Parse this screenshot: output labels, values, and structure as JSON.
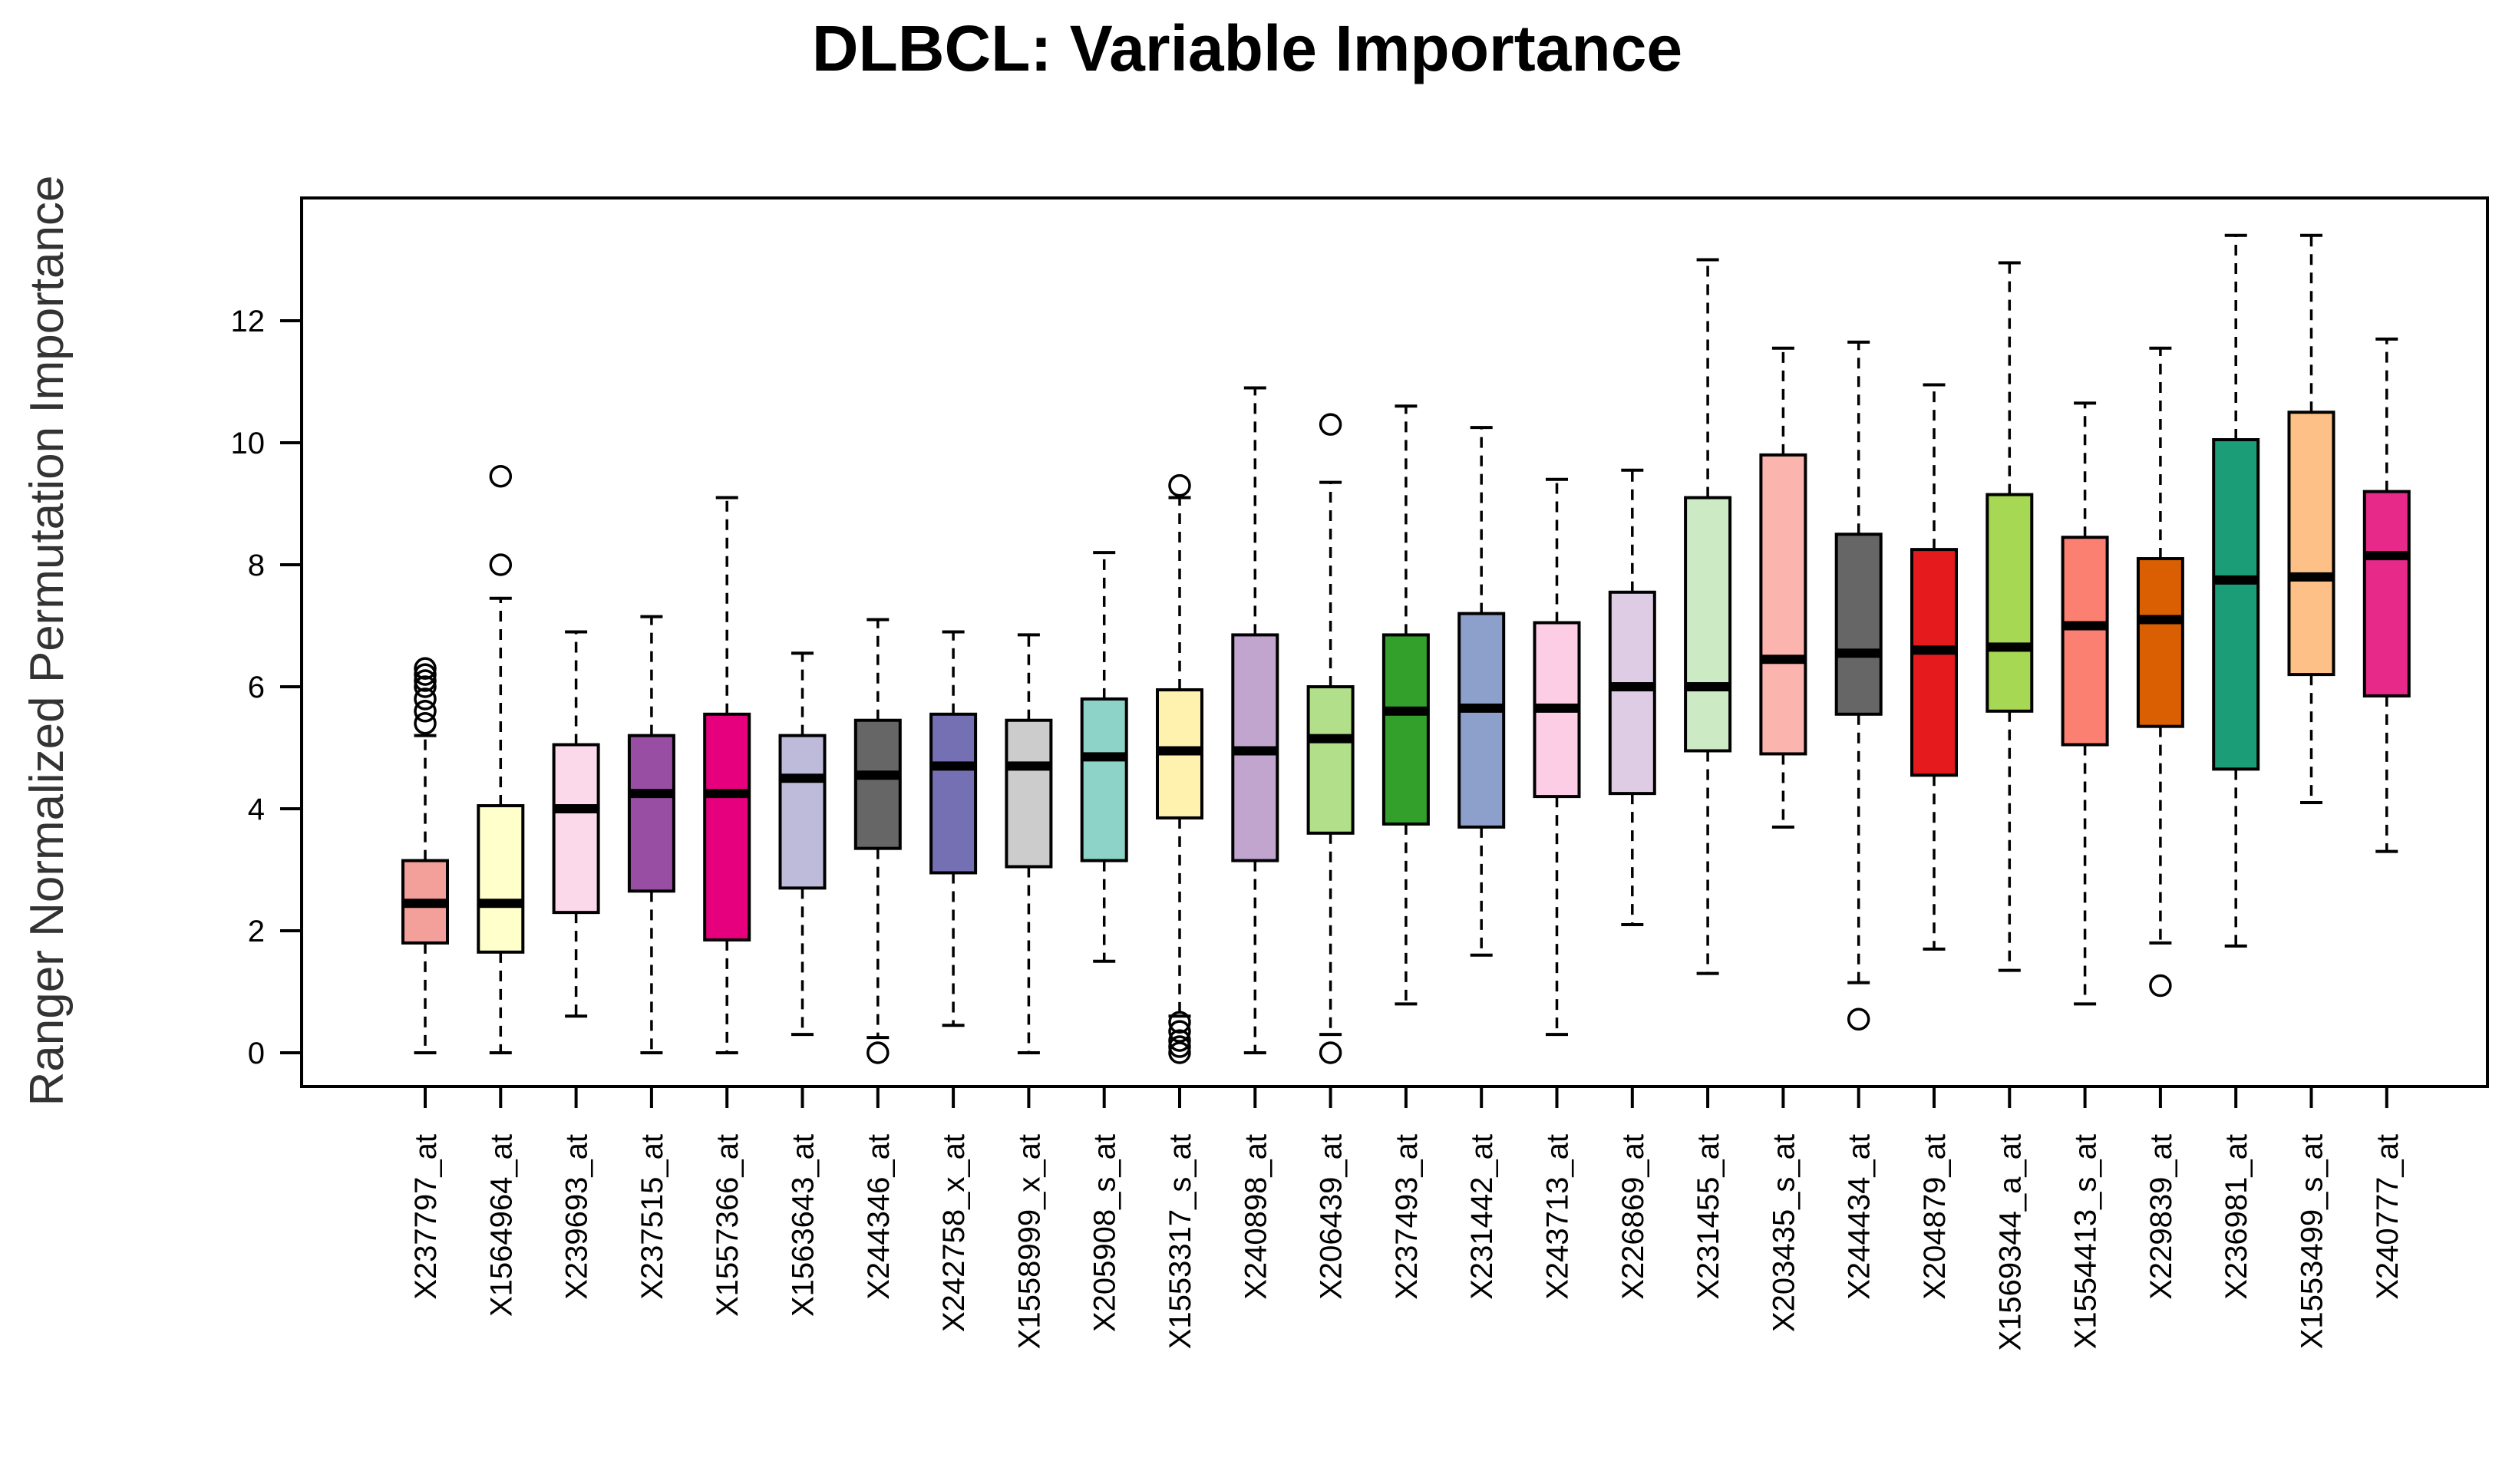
{
  "chart_data": {
    "type": "boxplot",
    "title": "DLBCL: Variable Importance",
    "xlabel": "",
    "ylabel": "Ranger Normalized Permutation Importance",
    "ylim": [
      0,
      14
    ],
    "yticks": [
      0,
      2,
      4,
      6,
      8,
      10,
      12
    ],
    "grid": false,
    "legend": "none",
    "boxes": [
      {
        "label": "X237797_at",
        "color": "#F4A09A",
        "min": 0.0,
        "q1": 1.8,
        "median": 2.45,
        "q3": 3.15,
        "max": 5.2,
        "outliers": [
          5.4,
          5.6,
          5.8,
          6.0,
          6.1,
          6.2,
          6.3
        ]
      },
      {
        "label": "X1564964_at",
        "color": "#FFFFCC",
        "min": 0.0,
        "q1": 1.65,
        "median": 2.45,
        "q3": 4.05,
        "max": 7.45,
        "outliers": [
          8.0,
          9.45
        ]
      },
      {
        "label": "X239693_at",
        "color": "#FBD8EA",
        "min": 0.6,
        "q1": 2.3,
        "median": 4.0,
        "q3": 5.05,
        "max": 6.9,
        "outliers": []
      },
      {
        "label": "X237515_at",
        "color": "#984EA3",
        "min": 0.0,
        "q1": 2.65,
        "median": 4.25,
        "q3": 5.2,
        "max": 7.15,
        "outliers": []
      },
      {
        "label": "X1557366_at",
        "color": "#E7007D",
        "min": 0.0,
        "q1": 1.85,
        "median": 4.25,
        "q3": 5.55,
        "max": 9.1,
        "outliers": []
      },
      {
        "label": "X1563643_at",
        "color": "#BEBADA",
        "min": 0.3,
        "q1": 2.7,
        "median": 4.5,
        "q3": 5.2,
        "max": 6.55,
        "outliers": []
      },
      {
        "label": "X244346_at",
        "color": "#666666",
        "min": 0.25,
        "q1": 3.35,
        "median": 4.55,
        "q3": 5.45,
        "max": 7.1,
        "outliers": [
          0.0
        ]
      },
      {
        "label": "X242758_x_at",
        "color": "#7570B3",
        "min": 0.45,
        "q1": 2.95,
        "median": 4.7,
        "q3": 5.55,
        "max": 6.9,
        "outliers": []
      },
      {
        "label": "X1558999_x_at",
        "color": "#CCCCCC",
        "min": 0.0,
        "q1": 3.05,
        "median": 4.7,
        "q3": 5.45,
        "max": 6.85,
        "outliers": []
      },
      {
        "label": "X205908_s_at",
        "color": "#8DD3C7",
        "min": 1.5,
        "q1": 3.15,
        "median": 4.85,
        "q3": 5.8,
        "max": 8.2,
        "outliers": []
      },
      {
        "label": "X1553317_s_at",
        "color": "#FFF2AE",
        "min": 0.6,
        "q1": 3.85,
        "median": 4.95,
        "q3": 5.95,
        "max": 9.1,
        "outliers": [
          0.0,
          0.1,
          0.2,
          0.35,
          0.5,
          9.3
        ]
      },
      {
        "label": "X240898_at",
        "color": "#C2A5CF",
        "min": 0.0,
        "q1": 3.15,
        "median": 4.95,
        "q3": 6.85,
        "max": 10.9,
        "outliers": []
      },
      {
        "label": "X206439_at",
        "color": "#B2DF8A",
        "min": 0.3,
        "q1": 3.6,
        "median": 5.15,
        "q3": 6.0,
        "max": 9.35,
        "outliers": [
          0.0,
          10.3
        ]
      },
      {
        "label": "X237493_at",
        "color": "#33A02C",
        "min": 0.8,
        "q1": 3.75,
        "median": 5.6,
        "q3": 6.85,
        "max": 10.6,
        "outliers": []
      },
      {
        "label": "X231442_at",
        "color": "#8DA0CB",
        "min": 1.6,
        "q1": 3.7,
        "median": 5.65,
        "q3": 7.2,
        "max": 10.25,
        "outliers": []
      },
      {
        "label": "X243713_at",
        "color": "#FCCDE5",
        "min": 0.3,
        "q1": 4.2,
        "median": 5.65,
        "q3": 7.05,
        "max": 9.4,
        "outliers": []
      },
      {
        "label": "X226869_at",
        "color": "#DECBE4",
        "min": 2.1,
        "q1": 4.25,
        "median": 6.0,
        "q3": 7.55,
        "max": 9.55,
        "outliers": []
      },
      {
        "label": "X231455_at",
        "color": "#CCEBC5",
        "min": 1.3,
        "q1": 4.95,
        "median": 6.0,
        "q3": 9.1,
        "max": 13.0,
        "outliers": []
      },
      {
        "label": "X203435_s_at",
        "color": "#FBB4AE",
        "min": 3.7,
        "q1": 4.9,
        "median": 6.45,
        "q3": 9.8,
        "max": 11.55,
        "outliers": []
      },
      {
        "label": "X244434_at",
        "color": "#666666",
        "min": 1.15,
        "q1": 5.55,
        "median": 6.55,
        "q3": 8.5,
        "max": 11.65,
        "outliers": [
          0.55
        ]
      },
      {
        "label": "X204879_at",
        "color": "#E41A1C",
        "min": 1.7,
        "q1": 4.55,
        "median": 6.6,
        "q3": 8.25,
        "max": 10.95,
        "outliers": []
      },
      {
        "label": "X1569344_a_at",
        "color": "#A6D854",
        "min": 1.35,
        "q1": 5.6,
        "median": 6.65,
        "q3": 9.15,
        "max": 12.95,
        "outliers": []
      },
      {
        "label": "X1554413_s_at",
        "color": "#FB8072",
        "min": 0.8,
        "q1": 5.05,
        "median": 7.0,
        "q3": 8.45,
        "max": 10.65,
        "outliers": []
      },
      {
        "label": "X229839_at",
        "color": "#D95F02",
        "min": 1.8,
        "q1": 5.35,
        "median": 7.1,
        "q3": 8.1,
        "max": 11.55,
        "outliers": [
          1.1
        ]
      },
      {
        "label": "X236981_at",
        "color": "#1B9E77",
        "min": 1.75,
        "q1": 4.65,
        "median": 7.75,
        "q3": 10.05,
        "max": 13.4,
        "outliers": []
      },
      {
        "label": "X1553499_s_at",
        "color": "#FDC086",
        "min": 4.1,
        "q1": 6.2,
        "median": 7.8,
        "q3": 10.5,
        "max": 13.4,
        "outliers": []
      },
      {
        "label": "X240777_at",
        "color": "#E7298A",
        "min": 3.3,
        "q1": 5.85,
        "median": 8.15,
        "q3": 9.2,
        "max": 11.7,
        "outliers": []
      }
    ]
  }
}
